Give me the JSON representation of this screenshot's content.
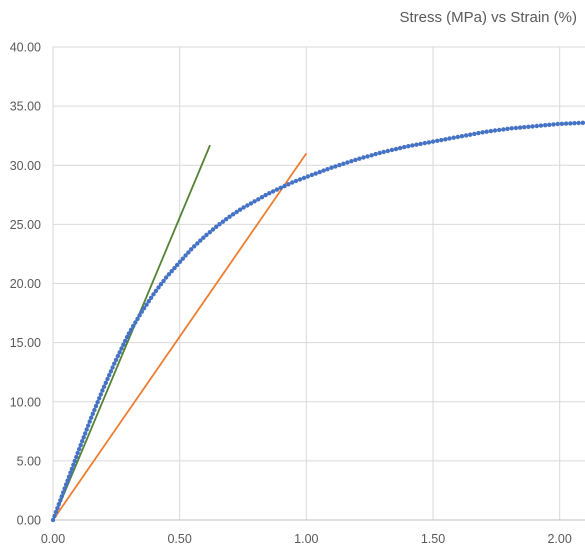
{
  "chart_data": {
    "type": "scatter",
    "title": "Stress (MPa) vs Strain (%)",
    "xlabel": "",
    "ylabel": "",
    "xlim": [
      0,
      2.1
    ],
    "ylim": [
      0,
      40
    ],
    "grid": true,
    "x_ticks": [
      "0.00",
      "0.50",
      "1.00",
      "1.50",
      "2.00"
    ],
    "y_ticks": [
      "0.00",
      "5.00",
      "10.00",
      "15.00",
      "20.00",
      "25.00",
      "30.00",
      "35.00",
      "40.00"
    ],
    "series": [
      {
        "type": "scatter",
        "color": "#4472c4",
        "x": [
          0.0,
          0.05,
          0.1,
          0.15,
          0.2,
          0.25,
          0.3,
          0.35,
          0.4,
          0.45,
          0.5,
          0.55,
          0.6,
          0.65,
          0.7,
          0.75,
          0.8,
          0.85,
          0.9,
          0.95,
          1.0,
          1.1,
          1.2,
          1.3,
          1.4,
          1.5,
          1.6,
          1.7,
          1.8,
          1.9,
          2.0,
          2.1
        ],
        "y": [
          0.0,
          2.9,
          5.8,
          8.6,
          11.2,
          13.6,
          15.8,
          17.6,
          19.2,
          20.6,
          21.8,
          23.0,
          24.0,
          24.9,
          25.7,
          26.4,
          27.0,
          27.6,
          28.1,
          28.6,
          29.0,
          29.8,
          30.5,
          31.1,
          31.6,
          32.0,
          32.4,
          32.8,
          33.1,
          33.3,
          33.5,
          33.6
        ]
      },
      {
        "type": "line",
        "color": "#548235",
        "x": [
          0.0,
          0.62
        ],
        "y": [
          0.0,
          31.7
        ]
      },
      {
        "type": "line",
        "color": "#ed7d31",
        "x": [
          0.0,
          1.0
        ],
        "y": [
          0.0,
          31.0
        ]
      }
    ]
  }
}
